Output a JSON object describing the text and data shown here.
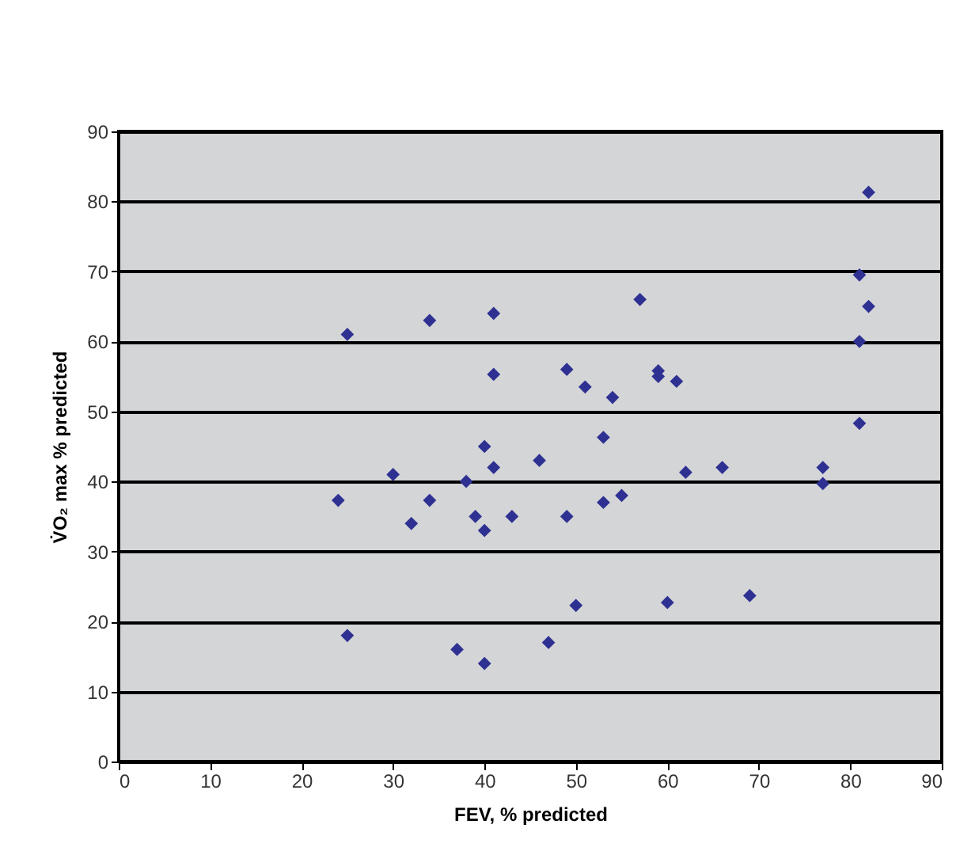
{
  "chart_data": {
    "type": "scatter",
    "xlabel": "FEV, % predicted",
    "ylabel": "V̇O₂ max % predicted",
    "x": [
      24,
      25,
      25,
      30,
      32,
      34,
      34,
      37,
      38,
      39,
      40,
      40,
      40,
      41,
      41,
      41,
      43,
      46,
      47,
      49,
      49,
      50,
      51,
      53,
      53,
      54,
      55,
      57,
      59,
      59,
      60,
      61,
      62,
      66,
      69,
      77,
      77,
      81,
      81,
      81,
      82,
      82
    ],
    "series": [
      {
        "color": "#2e3192",
        "values": [
          37.3,
          61,
          18,
          41,
          34,
          63,
          37.3,
          16,
          40,
          35,
          45,
          33,
          14,
          64,
          55.3,
          42,
          35,
          43,
          17,
          56,
          35,
          22.3,
          53.5,
          46.3,
          37,
          52,
          38,
          66,
          55.8,
          55,
          22.7,
          54.3,
          41.3,
          42,
          23.7,
          42,
          39.7,
          69.5,
          60,
          48.3,
          81.3,
          65
        ]
      }
    ],
    "xlim": [
      0,
      90
    ],
    "xticks": [
      0,
      10,
      20,
      30,
      40,
      50,
      60,
      70,
      80,
      90
    ],
    "ylim": [
      0,
      90
    ],
    "yticks": [
      0,
      10,
      20,
      30,
      40,
      50,
      60,
      70,
      80,
      90
    ],
    "grid": "y",
    "marker": "diamond"
  }
}
